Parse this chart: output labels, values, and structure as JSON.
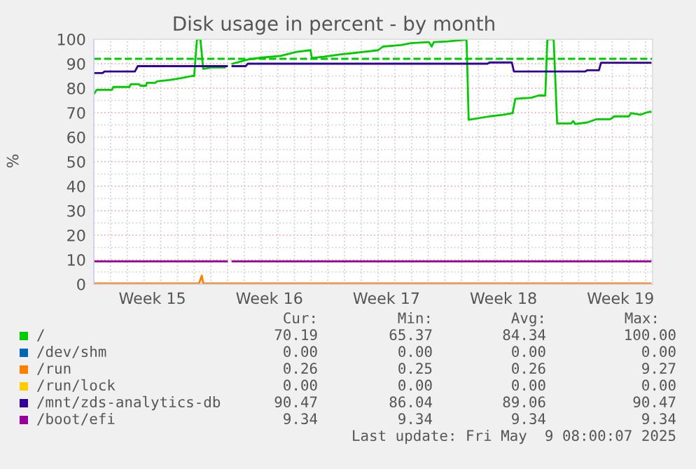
{
  "chart_data": {
    "type": "line",
    "title": "Disk usage in percent - by month",
    "ylabel": "%",
    "xlim": [
      "2025-04-06T00:00",
      "2025-05-09T10:00"
    ],
    "ylim": [
      0,
      100
    ],
    "xticks": [
      {
        "value": "2025-04-09T12:00",
        "label": "Week 15"
      },
      {
        "value": "2025-04-16T12:00",
        "label": "Week 16"
      },
      {
        "value": "2025-04-23T12:00",
        "label": "Week 17"
      },
      {
        "value": "2025-04-30T12:00",
        "label": "Week 18"
      },
      {
        "value": "2025-05-07T12:00",
        "label": "Week 19"
      },
      {
        "value": "2025-04-07T00:00",
        "label": null
      },
      {
        "value": "2025-04-08T00:00",
        "label": null
      },
      {
        "value": "2025-04-09T00:00",
        "label": null
      },
      {
        "value": "2025-04-10T00:00",
        "label": null
      },
      {
        "value": "2025-04-11T00:00",
        "label": null
      },
      {
        "value": "2025-04-12T00:00",
        "label": null
      },
      {
        "value": "2025-04-13T00:00",
        "label": null
      },
      {
        "value": "2025-04-14T00:00",
        "label": null
      },
      {
        "value": "2025-04-15T00:00",
        "label": null
      },
      {
        "value": "2025-04-16T00:00",
        "label": null
      },
      {
        "value": "2025-04-17T00:00",
        "label": null
      },
      {
        "value": "2025-04-18T00:00",
        "label": null
      },
      {
        "value": "2025-04-19T00:00",
        "label": null
      },
      {
        "value": "2025-04-20T00:00",
        "label": null
      },
      {
        "value": "2025-04-21T00:00",
        "label": null
      },
      {
        "value": "2025-04-22T00:00",
        "label": null
      },
      {
        "value": "2025-04-23T00:00",
        "label": null
      },
      {
        "value": "2025-04-24T00:00",
        "label": null
      },
      {
        "value": "2025-04-25T00:00",
        "label": null
      },
      {
        "value": "2025-04-26T00:00",
        "label": null
      },
      {
        "value": "2025-04-27T00:00",
        "label": null
      },
      {
        "value": "2025-04-28T00:00",
        "label": null
      },
      {
        "value": "2025-04-29T00:00",
        "label": null
      },
      {
        "value": "2025-04-30T00:00",
        "label": null
      },
      {
        "value": "2025-05-01T00:00",
        "label": null
      },
      {
        "value": "2025-05-02T00:00",
        "label": null
      },
      {
        "value": "2025-05-03T00:00",
        "label": null
      },
      {
        "value": "2025-05-04T00:00",
        "label": null
      },
      {
        "value": "2025-05-05T00:00",
        "label": null
      },
      {
        "value": "2025-05-06T00:00",
        "label": null
      },
      {
        "value": "2025-05-07T00:00",
        "label": null
      },
      {
        "value": "2025-05-08T00:00",
        "label": null
      },
      {
        "value": "2025-05-09T00:00",
        "label": null
      }
    ],
    "yticks": [
      0,
      10,
      20,
      30,
      40,
      50,
      60,
      70,
      80,
      90,
      100,
      {
        "value": 5,
        "label": null
      },
      {
        "value": 15,
        "label": null
      },
      {
        "value": 25,
        "label": null
      },
      {
        "value": 35,
        "label": null
      },
      {
        "value": 45,
        "label": null
      },
      {
        "value": 55,
        "label": null
      },
      {
        "value": 65,
        "label": null
      },
      {
        "value": 75,
        "label": null
      },
      {
        "value": 85,
        "label": null
      },
      {
        "value": 95,
        "label": null
      }
    ],
    "grid": true,
    "legend": "bottom",
    "marker": "none",
    "line_style": "solid",
    "ref_lines": [
      {
        "axis": "y",
        "value": 92,
        "label": null,
        "color": "#00cc00",
        "line_style": "dashed"
      }
    ],
    "series": [
      {
        "name": "/",
        "color": "#00cc00",
        "x": [
          "2025-04-06T01:00",
          "2025-04-06T04:00",
          "2025-04-07T02:00",
          "2025-04-07T04:00",
          "2025-04-08T03:00",
          "2025-04-08T05:00",
          "2025-04-08T17:00",
          "2025-04-08T19:00",
          "2025-04-09T03:00",
          "2025-04-09T04:00",
          "2025-04-09T16:00",
          "2025-04-09T19:00",
          "2025-04-10T12:00",
          "2025-04-11T05:00",
          "2025-04-11T21:00",
          "2025-04-12T00:00",
          "2025-04-12T04:00",
          "2025-04-12T09:00",
          "2025-04-12T13:00",
          "2025-04-13T03:00",
          "2025-04-13T20:00",
          "2025-04-14T02:00",
          "2025-04-14T07:00",
          "2025-04-15T05:00",
          "2025-04-16T01:00",
          "2025-04-17T04:00",
          "2025-04-18T03:00",
          "2025-04-18T23:00",
          "2025-04-19T01:00",
          "2025-04-19T19:00",
          "2025-04-20T19:00",
          "2025-04-21T21:00",
          "2025-04-23T00:00",
          "2025-04-23T07:00",
          "2025-04-24T09:00",
          "2025-04-24T23:00",
          "2025-04-26T01:00",
          "2025-04-26T05:00",
          "2025-04-26T08:00",
          "2025-04-27T04:00",
          "2025-04-28T07:00",
          "2025-04-28T10:00",
          "2025-04-29T16:00",
          "2025-04-30T12:00",
          "2025-05-01T01:00",
          "2025-05-01T05:00",
          "2025-05-02T04:00",
          "2025-05-02T14:00",
          "2025-05-03T00:00",
          "2025-05-03T03:00",
          "2025-05-03T12:00",
          "2025-05-03T17:00",
          "2025-05-04T13:00",
          "2025-05-04T16:00",
          "2025-05-04T19:00",
          "2025-05-05T12:00",
          "2025-05-06T01:00",
          "2025-05-06T21:00",
          "2025-05-07T03:00",
          "2025-05-08T00:00",
          "2025-05-08T03:00",
          "2025-05-08T17:00",
          "2025-05-09T03:00",
          "2025-05-09T07:00"
        ],
        "values": [
          78,
          79.3,
          79.3,
          80.5,
          80.5,
          81.6,
          81.6,
          81,
          81,
          82.2,
          82.2,
          82.8,
          83.3,
          84.1,
          85,
          85,
          100,
          100,
          87.9,
          88.5,
          88.5,
          null,
          90,
          91.7,
          92.5,
          93.2,
          94.8,
          95.5,
          92.3,
          92.9,
          93.8,
          94.6,
          95.5,
          97,
          97.6,
          98.4,
          98.8,
          97,
          98.8,
          99.1,
          99.8,
          67.1,
          68.5,
          69.2,
          69.8,
          75.7,
          76.1,
          77,
          77,
          100,
          100,
          65.6,
          65.6,
          66.6,
          65.4,
          66,
          67.3,
          67.3,
          68.5,
          68.5,
          69.8,
          69.2,
          70.2,
          70.4
        ]
      },
      {
        "name": "/dev/shm",
        "color": "#0066b3"
      },
      {
        "name": "/run",
        "color": "#ff8000",
        "x": [
          "2025-04-06T01:00",
          "2025-04-12T07:00",
          "2025-04-12T11:00",
          "2025-04-12T13:00",
          "2025-05-09T07:00"
        ],
        "values": [
          0.3,
          0.3,
          3.5,
          0.3,
          0.3
        ]
      },
      {
        "name": "/run/lock",
        "color": "#ffcc00"
      },
      {
        "name": "/mnt/zds-analytics-db",
        "color": "#330099",
        "x": [
          "2025-04-06T01:00",
          "2025-04-06T13:00",
          "2025-04-06T15:00",
          "2025-04-08T11:00",
          "2025-04-08T15:00",
          "2025-04-13T23:00",
          "2025-04-14T02:00",
          "2025-04-14T07:00",
          "2025-04-15T02:00",
          "2025-04-15T05:00",
          "2025-04-29T13:00",
          "2025-04-29T16:00",
          "2025-05-01T00:00",
          "2025-05-01T03:00",
          "2025-05-05T09:00",
          "2025-05-05T12:00",
          "2025-05-06T05:00",
          "2025-05-06T08:00",
          "2025-05-09T07:00"
        ],
        "values": [
          86.2,
          86.2,
          86.8,
          86.8,
          89,
          89,
          null,
          89,
          89,
          90,
          90,
          90.5,
          90.5,
          86.8,
          86.8,
          87.3,
          87.3,
          90.4,
          90.4
        ]
      },
      {
        "name": "/boot/efi",
        "color": "#990099",
        "x": [
          "2025-04-06T01:00",
          "2025-04-13T23:00",
          "2025-04-14T02:00",
          "2025-04-14T07:00",
          "2025-05-09T07:00"
        ],
        "values": [
          9.3,
          9.3,
          null,
          9.3,
          9.3
        ]
      }
    ],
    "annotations": [
      "Cur:",
      "Min:",
      "Avg:",
      "Max:",
      "70.19",
      "65.37",
      "84.34",
      "100.00",
      "0.00",
      "0.00",
      "0.00",
      "0.00",
      "0.26",
      "0.25",
      "0.26",
      "9.27",
      "0.00",
      "0.00",
      "0.00",
      "0.00",
      "90.47",
      "86.04",
      "89.06",
      "90.47",
      "9.34",
      "9.34",
      "9.34",
      "9.34",
      "Last update: Fri May  9 08:00:07 2025"
    ]
  }
}
